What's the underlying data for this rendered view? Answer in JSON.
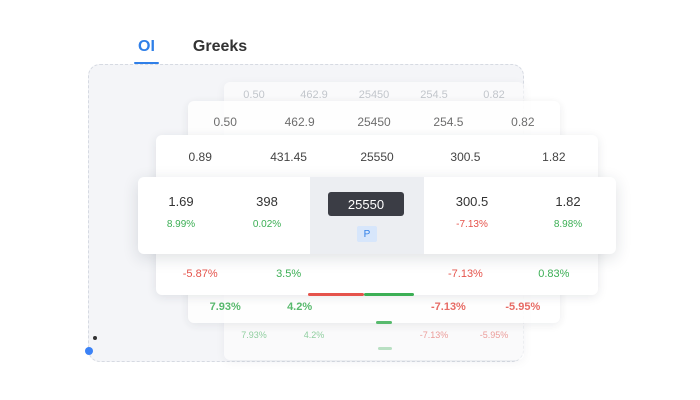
{
  "tabs": [
    {
      "label": "OI",
      "active": true
    },
    {
      "label": "Greeks",
      "active": false
    }
  ],
  "colors": {
    "accent": "#2f7fe8",
    "positive": "#3caf55",
    "negative": "#e5534b",
    "strike_pill": "#3b3d45"
  },
  "layer_back": {
    "top_values": [
      "0.50",
      "462.9",
      "25450",
      "254.5",
      "0.82"
    ],
    "bottom_changes": [
      "7.93%",
      "4.2%",
      "-7.13%",
      "-5.95%"
    ]
  },
  "layer_mid": {
    "top_values": [
      "0.50",
      "462.9",
      "25450",
      "254.5",
      "0.82"
    ],
    "bottom_changes": [
      "7.93%",
      "4.2%",
      "-7.13%",
      "-5.95%"
    ]
  },
  "layer_near": {
    "top_values": [
      "0.89",
      "431.45",
      "25550",
      "300.5",
      "1.82"
    ],
    "bottom_changes": [
      "-5.87%",
      "3.5%",
      "-7.13%",
      "0.83%"
    ]
  },
  "front_row": {
    "call_ltp": "1.69",
    "call_ltp_change": "8.99%",
    "call_oi": "398",
    "call_oi_change": "0.02%",
    "strike": "25550",
    "option_type": "P",
    "put_oi": "300.5",
    "put_oi_change": "-7.13%",
    "put_ltp": "1.82",
    "put_ltp_change": "8.98%"
  }
}
